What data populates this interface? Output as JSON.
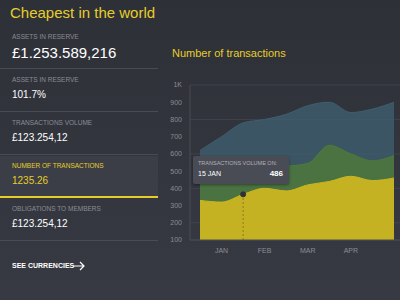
{
  "header": {
    "title": "Cheapest in the world"
  },
  "sidebar": [
    {
      "label": "ASSETS IN RESERVE",
      "value": "£1.253.589,216"
    },
    {
      "label": "ASSETS IN RESERVE",
      "value": "101.7%"
    },
    {
      "label": "TRANSACTIONS VOLUME",
      "value": "£123.254,12"
    },
    {
      "label": "NUMBER OF TRANSACTIONS",
      "value": "1235.26"
    },
    {
      "label": "OBLIGATIONS TO MEMBERS",
      "value": "£123.254,12"
    }
  ],
  "link": "SEE CURRENCIES",
  "chart_data": {
    "type": "area",
    "title": "Number of transactions",
    "categories": [
      null,
      "JAN",
      null,
      "FEB",
      null,
      "MAR",
      null,
      "APR",
      null,
      null
    ],
    "series": [
      {
        "color": "#3f5e6e",
        "values": [
          620,
          700,
          780,
          800,
          830,
          880,
          900,
          840,
          860,
          900
        ]
      },
      {
        "color": "#4e7a38",
        "values": [
          500,
          530,
          520,
          560,
          530,
          545,
          650,
          600,
          560,
          590
        ]
      },
      {
        "color": "#cbb522",
        "values": [
          330,
          320,
          365,
          400,
          385,
          420,
          440,
          470,
          445,
          460
        ]
      }
    ],
    "ylim": [
      100,
      1000
    ],
    "yticks": [
      100,
      200,
      300,
      400,
      500,
      600,
      700,
      800,
      900,
      {
        "value": 1000,
        "label": "1K"
      }
    ],
    "grid": true,
    "annotations": [
      {
        "label": "TRANSACTIONS VOLUME ON:",
        "date": "15 JAN",
        "value": 486
      }
    ]
  }
}
